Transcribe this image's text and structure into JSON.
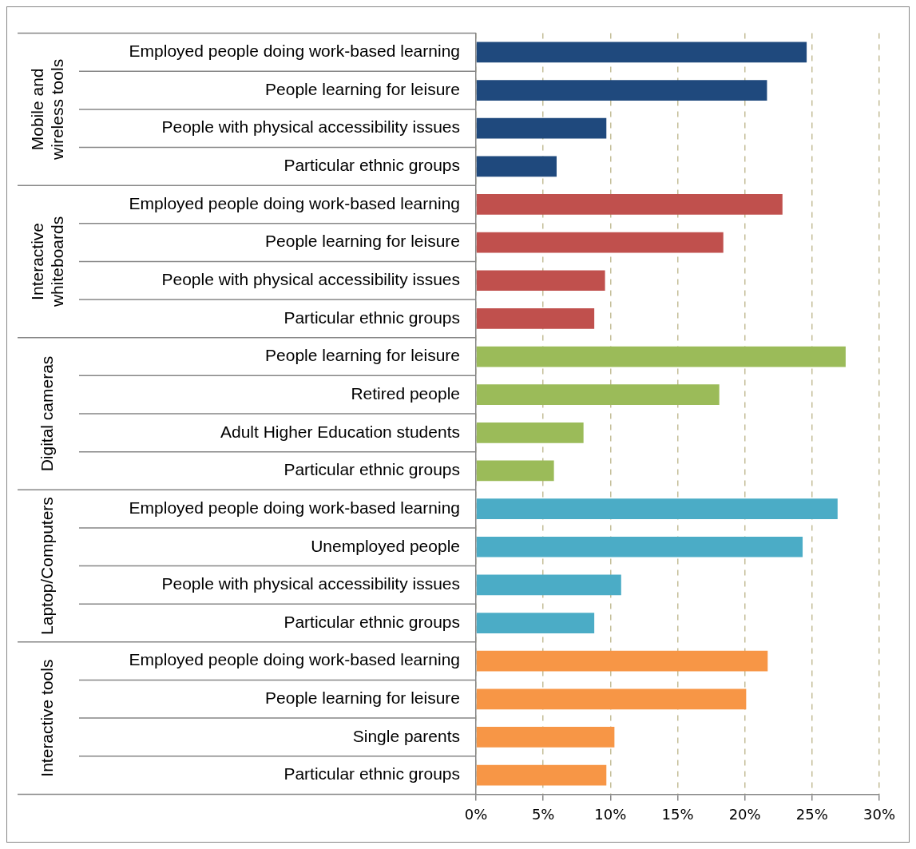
{
  "chart_data": {
    "type": "bar",
    "orientation": "horizontal",
    "categories": [
      "Employed people doing work-based learning",
      "People learning for leisure",
      "People with physical accessibility issues",
      "Particular ethnic groups",
      "Employed people doing work-based learning",
      "People learning for leisure",
      "People with physical accessibility issues",
      "Particular ethnic groups",
      "People learning for leisure",
      "Retired people",
      "Adult Higher Education students",
      "Particular ethnic groups",
      "Employed people doing work-based learning",
      "Unemployed people",
      "People with physical accessibility issues",
      "Particular ethnic groups",
      "Employed people doing work-based learning",
      "People learning for leisure",
      "Single parents",
      "Particular ethnic groups"
    ],
    "series": [
      {
        "color": "#1f497d",
        "values": [
          24.6,
          21.65,
          9.7,
          6.0,
          null,
          null,
          null,
          null,
          null,
          null,
          null,
          null,
          null,
          null,
          null,
          null,
          null,
          null,
          null,
          null
        ]
      },
      {
        "color": "#c0504d",
        "values": [
          null,
          null,
          null,
          null,
          22.8,
          18.4,
          9.6,
          8.8,
          null,
          null,
          null,
          null,
          null,
          null,
          null,
          null,
          null,
          null,
          null,
          null
        ]
      },
      {
        "color": "#9bbb59",
        "values": [
          null,
          null,
          null,
          null,
          null,
          null,
          null,
          null,
          27.5,
          18.1,
          8.0,
          5.8,
          null,
          null,
          null,
          null,
          null,
          null,
          null,
          null
        ]
      },
      {
        "color": "#4bacc6",
        "values": [
          null,
          null,
          null,
          null,
          null,
          null,
          null,
          null,
          null,
          null,
          null,
          null,
          26.9,
          24.3,
          10.8,
          8.8,
          null,
          null,
          null,
          null
        ]
      },
      {
        "color": "#f79646",
        "values": [
          null,
          null,
          null,
          null,
          null,
          null,
          null,
          null,
          null,
          null,
          null,
          null,
          null,
          null,
          null,
          null,
          21.7,
          20.1,
          10.3,
          9.7
        ]
      }
    ],
    "xlim": [
      0,
      30
    ],
    "xticks": [
      {
        "value": 0,
        "label": "0%"
      },
      {
        "value": 5,
        "label": "5%"
      },
      {
        "value": 10,
        "label": "10%"
      },
      {
        "value": 15,
        "label": "15%"
      },
      {
        "value": 20,
        "label": "20%"
      },
      {
        "value": 25,
        "label": "25%"
      },
      {
        "value": 30,
        "label": "30%"
      }
    ],
    "annotations": [
      "Mobile and wireless tools",
      "Interactive whiteboards",
      "Digital cameras",
      "Laptop/Computers",
      "Interactive tools"
    ],
    "grid": "x"
  }
}
